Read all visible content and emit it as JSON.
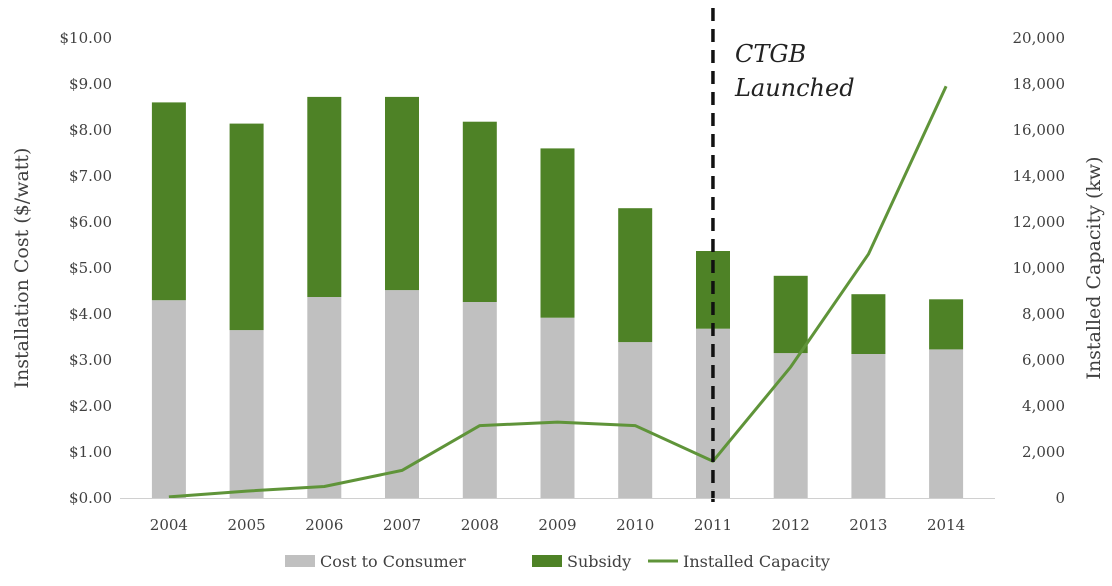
{
  "chart_data": {
    "type": "bar",
    "stacked": true,
    "categories": [
      "2004",
      "2005",
      "2006",
      "2007",
      "2008",
      "2009",
      "2010",
      "2011",
      "2012",
      "2013",
      "2014"
    ],
    "series": [
      {
        "name": "Cost to Consumer",
        "type": "bar",
        "axis": "left",
        "color": "#c0c0c0",
        "values": [
          4.3,
          3.65,
          4.37,
          4.52,
          4.26,
          3.92,
          3.39,
          3.68,
          3.15,
          3.13,
          3.23
        ]
      },
      {
        "name": "Subsidy",
        "type": "bar",
        "axis": "left",
        "color": "#4e8226",
        "values": [
          4.3,
          4.49,
          4.35,
          4.2,
          3.92,
          3.68,
          2.91,
          1.69,
          1.68,
          1.3,
          1.09
        ]
      },
      {
        "name": "Installed Capacity",
        "type": "line",
        "axis": "right",
        "color": "#5f9439",
        "values": [
          50,
          300,
          500,
          1200,
          3150,
          3300,
          3150,
          1600,
          5700,
          10600,
          17900
        ]
      }
    ],
    "ylabel": "Installation Cost ($/watt)",
    "y2label": "Installed Capacity (kw)",
    "ylim": [
      0,
      10
    ],
    "y2lim": [
      0,
      20000
    ],
    "yticks": [
      "$0.00",
      "$1.00",
      "$2.00",
      "$3.00",
      "$4.00",
      "$5.00",
      "$6.00",
      "$7.00",
      "$8.00",
      "$9.00",
      "$10.00"
    ],
    "y2ticks": [
      "0",
      "2,000",
      "4,000",
      "6,000",
      "8,000",
      "10,000",
      "12,000",
      "14,000",
      "16,000",
      "18,000",
      "20,000"
    ],
    "annotation": {
      "lines": [
        "CTGB",
        "Launched"
      ],
      "at_category": "2011",
      "style": "dashed-vertical-line"
    },
    "legend": {
      "placement": "bottom",
      "entries": [
        "Cost to Consumer",
        "Subsidy",
        "Installed Capacity"
      ]
    },
    "grid": false
  }
}
